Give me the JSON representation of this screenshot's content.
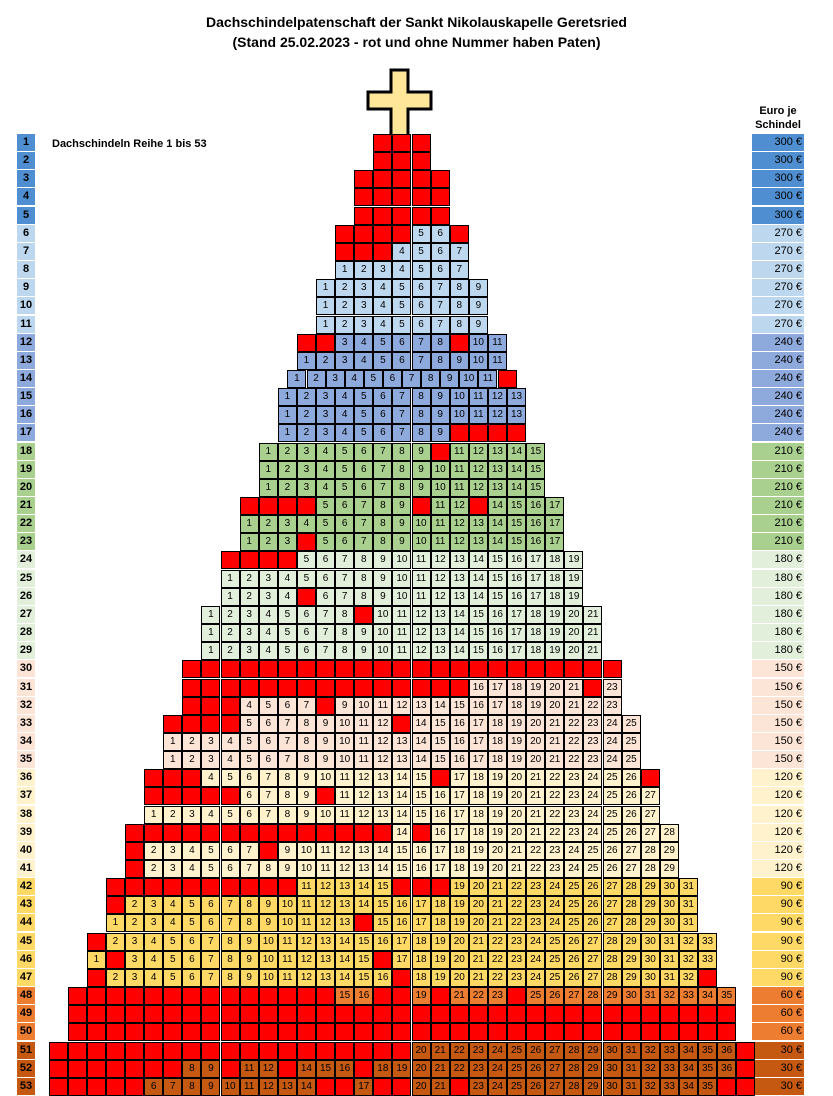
{
  "title1": "Dachschindelpatenschaft der Sankt Nikolauskapelle Geretsried",
  "title2": "(Stand 25.02.2023 - rot und ohne Nummer haben Paten)",
  "row_label": "Dachschindeln Reihe 1 bis 53",
  "price_header_1": "Euro je",
  "price_header_2": "Schindel",
  "rows": [
    {
      "n": "1",
      "price": "300 €",
      "color": "#4f8fd1",
      "cells": [
        "",
        "",
        ""
      ]
    },
    {
      "n": "2",
      "price": "300 €",
      "color": "#4f8fd1",
      "cells": [
        "",
        "",
        ""
      ]
    },
    {
      "n": "3",
      "price": "300 €",
      "color": "#4f8fd1",
      "cells": [
        "",
        "",
        "",
        "",
        ""
      ]
    },
    {
      "n": "4",
      "price": "300 €",
      "color": "#4f8fd1",
      "cells": [
        "",
        "",
        "",
        "",
        ""
      ]
    },
    {
      "n": "5",
      "price": "300 €",
      "color": "#4f8fd1",
      "cells": [
        "",
        "",
        "",
        "",
        ""
      ]
    },
    {
      "n": "6",
      "price": "270 €",
      "color": "#bdd7ee",
      "cells": [
        "",
        "",
        "",
        "",
        "5",
        "6",
        ""
      ]
    },
    {
      "n": "7",
      "price": "270 €",
      "color": "#bdd7ee",
      "cells": [
        "",
        "",
        "",
        "4",
        "5",
        "6",
        "7"
      ]
    },
    {
      "n": "8",
      "price": "270 €",
      "color": "#bdd7ee",
      "cells": [
        "1",
        "2",
        "3",
        "4",
        "5",
        "6",
        "7"
      ]
    },
    {
      "n": "9",
      "price": "270 €",
      "color": "#bdd7ee",
      "cells": [
        "1",
        "2",
        "3",
        "4",
        "5",
        "6",
        "7",
        "8",
        "9"
      ]
    },
    {
      "n": "10",
      "price": "270 €",
      "color": "#bdd7ee",
      "cells": [
        "1",
        "2",
        "3",
        "4",
        "5",
        "6",
        "7",
        "8",
        "9"
      ]
    },
    {
      "n": "11",
      "price": "270 €",
      "color": "#bdd7ee",
      "cells": [
        "1",
        "2",
        "3",
        "4",
        "5",
        "6",
        "7",
        "8",
        "9"
      ]
    },
    {
      "n": "12",
      "price": "240 €",
      "color": "#8ea9db",
      "cells": [
        "",
        "",
        "3",
        "4",
        "5",
        "6",
        "7",
        "8",
        "",
        "10",
        "11"
      ]
    },
    {
      "n": "13",
      "price": "240 €",
      "color": "#8ea9db",
      "cells": [
        "1",
        "2",
        "3",
        "4",
        "5",
        "6",
        "7",
        "8",
        "9",
        "10",
        "11"
      ]
    },
    {
      "n": "14",
      "price": "240 €",
      "color": "#8ea9db",
      "cells": [
        "1",
        "2",
        "3",
        "4",
        "5",
        "6",
        "7",
        "8",
        "9",
        "10",
        "11",
        ""
      ]
    },
    {
      "n": "15",
      "price": "240 €",
      "color": "#8ea9db",
      "cells": [
        "1",
        "2",
        "3",
        "4",
        "5",
        "6",
        "7",
        "8",
        "9",
        "10",
        "11",
        "12",
        "13"
      ]
    },
    {
      "n": "16",
      "price": "240 €",
      "color": "#8ea9db",
      "cells": [
        "1",
        "2",
        "3",
        "4",
        "5",
        "6",
        "7",
        "8",
        "9",
        "10",
        "11",
        "12",
        "13"
      ]
    },
    {
      "n": "17",
      "price": "240 €",
      "color": "#8ea9db",
      "cells": [
        "1",
        "2",
        "3",
        "4",
        "5",
        "6",
        "7",
        "8",
        "9",
        "",
        "",
        "",
        ""
      ]
    },
    {
      "n": "18",
      "price": "210 €",
      "color": "#a9d08e",
      "cells": [
        "1",
        "2",
        "3",
        "4",
        "5",
        "6",
        "7",
        "8",
        "9",
        "",
        "11",
        "12",
        "13",
        "14",
        "15"
      ]
    },
    {
      "n": "19",
      "price": "210 €",
      "color": "#a9d08e",
      "cells": [
        "1",
        "2",
        "3",
        "4",
        "5",
        "6",
        "7",
        "8",
        "9",
        "10",
        "11",
        "12",
        "13",
        "14",
        "15"
      ]
    },
    {
      "n": "20",
      "price": "210 €",
      "color": "#a9d08e",
      "cells": [
        "1",
        "2",
        "3",
        "4",
        "5",
        "6",
        "7",
        "8",
        "9",
        "10",
        "11",
        "12",
        "13",
        "14",
        "15"
      ]
    },
    {
      "n": "21",
      "price": "210 €",
      "color": "#a9d08e",
      "cells": [
        "",
        "",
        "",
        "",
        "5",
        "6",
        "7",
        "8",
        "9",
        "",
        "11",
        "12",
        "",
        "14",
        "15",
        "16",
        "17"
      ]
    },
    {
      "n": "22",
      "price": "210 €",
      "color": "#a9d08e",
      "cells": [
        "1",
        "2",
        "3",
        "4",
        "5",
        "6",
        "7",
        "8",
        "9",
        "10",
        "11",
        "12",
        "13",
        "14",
        "15",
        "16",
        "17"
      ]
    },
    {
      "n": "23",
      "price": "210 €",
      "color": "#a9d08e",
      "cells": [
        "1",
        "2",
        "3",
        "",
        "5",
        "6",
        "7",
        "8",
        "9",
        "10",
        "11",
        "12",
        "13",
        "14",
        "15",
        "16",
        "17"
      ]
    },
    {
      "n": "24",
      "price": "180 €",
      "color": "#e2efda",
      "cells": [
        "",
        "",
        "",
        "",
        "5",
        "6",
        "7",
        "8",
        "9",
        "10",
        "11",
        "12",
        "13",
        "14",
        "15",
        "16",
        "17",
        "18",
        "19"
      ]
    },
    {
      "n": "25",
      "price": "180 €",
      "color": "#e2efda",
      "cells": [
        "1",
        "2",
        "3",
        "4",
        "5",
        "6",
        "7",
        "8",
        "9",
        "10",
        "11",
        "12",
        "13",
        "14",
        "15",
        "16",
        "17",
        "18",
        "19"
      ]
    },
    {
      "n": "26",
      "price": "180 €",
      "color": "#e2efda",
      "cells": [
        "1",
        "2",
        "3",
        "4",
        "",
        "6",
        "7",
        "8",
        "9",
        "10",
        "11",
        "12",
        "13",
        "14",
        "15",
        "16",
        "17",
        "18",
        "19"
      ]
    },
    {
      "n": "27",
      "price": "180 €",
      "color": "#e2efda",
      "cells": [
        "1",
        "2",
        "3",
        "4",
        "5",
        "6",
        "7",
        "8",
        "",
        "10",
        "11",
        "12",
        "13",
        "14",
        "15",
        "16",
        "17",
        "18",
        "19",
        "20",
        "21"
      ]
    },
    {
      "n": "28",
      "price": "180 €",
      "color": "#e2efda",
      "cells": [
        "1",
        "2",
        "3",
        "4",
        "5",
        "6",
        "7",
        "8",
        "9",
        "10",
        "11",
        "12",
        "13",
        "14",
        "15",
        "16",
        "17",
        "18",
        "19",
        "20",
        "21"
      ]
    },
    {
      "n": "29",
      "price": "180 €",
      "color": "#e2efda",
      "cells": [
        "1",
        "2",
        "3",
        "4",
        "5",
        "6",
        "7",
        "8",
        "9",
        "10",
        "11",
        "12",
        "13",
        "14",
        "15",
        "16",
        "17",
        "18",
        "19",
        "20",
        "21"
      ]
    },
    {
      "n": "30",
      "price": "150 €",
      "color": "#fce4d6",
      "cells": [
        "",
        "",
        "",
        "",
        "",
        "",
        "",
        "",
        "",
        "",
        "",
        "",
        "",
        "",
        "",
        "",
        "",
        "",
        "",
        "",
        "",
        "",
        ""
      ]
    },
    {
      "n": "31",
      "price": "150 €",
      "color": "#fce4d6",
      "cells": [
        "",
        "",
        "",
        "",
        "",
        "",
        "",
        "",
        "",
        "",
        "",
        "",
        "",
        "",
        "",
        "16",
        "17",
        "18",
        "19",
        "20",
        "21",
        "",
        "23"
      ]
    },
    {
      "n": "32",
      "price": "150 €",
      "color": "#fce4d6",
      "cells": [
        "",
        "",
        "",
        "4",
        "5",
        "6",
        "7",
        "",
        "9",
        "10",
        "11",
        "12",
        "13",
        "14",
        "15",
        "16",
        "17",
        "18",
        "19",
        "20",
        "21",
        "22",
        "23"
      ]
    },
    {
      "n": "33",
      "price": "150 €",
      "color": "#fce4d6",
      "cells": [
        "",
        "",
        "",
        "",
        "5",
        "6",
        "7",
        "8",
        "9",
        "10",
        "11",
        "12",
        "",
        "14",
        "15",
        "16",
        "17",
        "18",
        "19",
        "20",
        "21",
        "22",
        "23",
        "24",
        "25"
      ]
    },
    {
      "n": "34",
      "price": "150 €",
      "color": "#fce4d6",
      "cells": [
        "1",
        "2",
        "3",
        "4",
        "5",
        "6",
        "7",
        "8",
        "9",
        "10",
        "11",
        "12",
        "13",
        "14",
        "15",
        "16",
        "17",
        "18",
        "19",
        "20",
        "21",
        "22",
        "23",
        "24",
        "25"
      ]
    },
    {
      "n": "35",
      "price": "150 €",
      "color": "#fce4d6",
      "cells": [
        "1",
        "2",
        "3",
        "4",
        "5",
        "6",
        "7",
        "8",
        "9",
        "10",
        "11",
        "12",
        "13",
        "14",
        "15",
        "16",
        "17",
        "18",
        "19",
        "20",
        "21",
        "22",
        "23",
        "24",
        "25"
      ]
    },
    {
      "n": "36",
      "price": "120 €",
      "color": "#fff2cc",
      "cells": [
        "",
        "",
        "",
        "4",
        "5",
        "6",
        "7",
        "8",
        "9",
        "10",
        "11",
        "12",
        "13",
        "14",
        "15",
        "",
        "17",
        "18",
        "19",
        "20",
        "21",
        "22",
        "23",
        "24",
        "25",
        "26",
        ""
      ]
    },
    {
      "n": "37",
      "price": "120 €",
      "color": "#fff2cc",
      "cells": [
        "",
        "",
        "",
        "",
        "",
        "6",
        "7",
        "8",
        "9",
        "",
        "11",
        "12",
        "13",
        "14",
        "15",
        "16",
        "17",
        "18",
        "19",
        "20",
        "21",
        "22",
        "23",
        "24",
        "25",
        "26",
        "27"
      ]
    },
    {
      "n": "38",
      "price": "120 €",
      "color": "#fff2cc",
      "cells": [
        "1",
        "2",
        "3",
        "4",
        "5",
        "6",
        "7",
        "8",
        "9",
        "10",
        "11",
        "12",
        "13",
        "14",
        "15",
        "16",
        "17",
        "18",
        "19",
        "20",
        "21",
        "22",
        "23",
        "24",
        "25",
        "26",
        "27"
      ]
    },
    {
      "n": "39",
      "price": "120 €",
      "color": "#fff2cc",
      "cells": [
        "",
        "",
        "",
        "",
        "",
        "",
        "",
        "",
        "",
        "",
        "",
        "",
        "",
        "",
        "14",
        "",
        "16",
        "17",
        "18",
        "19",
        "20",
        "21",
        "22",
        "23",
        "24",
        "25",
        "26",
        "27",
        "28"
      ]
    },
    {
      "n": "40",
      "price": "120 €",
      "color": "#fff2cc",
      "cells": [
        "",
        "2",
        "3",
        "4",
        "5",
        "6",
        "7",
        "",
        "9",
        "10",
        "11",
        "12",
        "13",
        "14",
        "15",
        "16",
        "17",
        "18",
        "19",
        "20",
        "21",
        "22",
        "23",
        "24",
        "25",
        "26",
        "27",
        "28",
        "29"
      ]
    },
    {
      "n": "41",
      "price": "120 €",
      "color": "#fff2cc",
      "cells": [
        "",
        "2",
        "3",
        "4",
        "5",
        "6",
        "7",
        "8",
        "9",
        "10",
        "11",
        "12",
        "13",
        "14",
        "15",
        "16",
        "17",
        "18",
        "19",
        "20",
        "21",
        "22",
        "23",
        "24",
        "25",
        "26",
        "27",
        "28",
        "29"
      ]
    },
    {
      "n": "42",
      "price": "90 €",
      "color": "#ffd966",
      "cells": [
        "",
        "",
        "",
        "",
        "",
        "",
        "",
        "",
        "",
        "",
        "11",
        "12",
        "13",
        "14",
        "15",
        "",
        "",
        "",
        "19",
        "20",
        "21",
        "22",
        "23",
        "24",
        "25",
        "26",
        "27",
        "28",
        "29",
        "30",
        "31"
      ]
    },
    {
      "n": "43",
      "price": "90 €",
      "color": "#ffd966",
      "cells": [
        "",
        "2",
        "3",
        "4",
        "5",
        "6",
        "7",
        "8",
        "9",
        "10",
        "11",
        "12",
        "13",
        "14",
        "15",
        "16",
        "17",
        "18",
        "19",
        "20",
        "21",
        "22",
        "23",
        "24",
        "25",
        "26",
        "27",
        "28",
        "29",
        "30",
        "31"
      ]
    },
    {
      "n": "44",
      "price": "90 €",
      "color": "#ffd966",
      "cells": [
        "1",
        "2",
        "3",
        "4",
        "5",
        "6",
        "7",
        "8",
        "9",
        "10",
        "11",
        "12",
        "13",
        "",
        "15",
        "16",
        "17",
        "18",
        "19",
        "20",
        "21",
        "22",
        "23",
        "24",
        "25",
        "26",
        "27",
        "28",
        "29",
        "30",
        "31"
      ]
    },
    {
      "n": "45",
      "price": "90 €",
      "color": "#ffd966",
      "cells": [
        "",
        "2",
        "3",
        "4",
        "5",
        "6",
        "7",
        "8",
        "9",
        "10",
        "11",
        "12",
        "13",
        "14",
        "15",
        "16",
        "17",
        "18",
        "19",
        "20",
        "21",
        "22",
        "23",
        "24",
        "25",
        "26",
        "27",
        "28",
        "29",
        "30",
        "31",
        "32",
        "33"
      ]
    },
    {
      "n": "46",
      "price": "90 €",
      "color": "#ffd966",
      "cells": [
        "1",
        "",
        "3",
        "4",
        "5",
        "6",
        "7",
        "8",
        "9",
        "10",
        "11",
        "12",
        "13",
        "14",
        "15",
        "",
        "17",
        "18",
        "19",
        "20",
        "21",
        "22",
        "23",
        "24",
        "25",
        "26",
        "27",
        "28",
        "29",
        "30",
        "31",
        "32",
        "33"
      ]
    },
    {
      "n": "47",
      "price": "90 €",
      "color": "#ffd966",
      "cells": [
        "",
        "2",
        "3",
        "4",
        "5",
        "6",
        "7",
        "8",
        "9",
        "10",
        "11",
        "12",
        "13",
        "14",
        "15",
        "16",
        "",
        "18",
        "19",
        "20",
        "21",
        "22",
        "23",
        "24",
        "25",
        "26",
        "27",
        "28",
        "29",
        "30",
        "31",
        "32",
        ""
      ]
    },
    {
      "n": "48",
      "price": "60 €",
      "color": "#ed7d31",
      "cells": [
        "",
        "",
        "",
        "",
        "",
        "",
        "",
        "",
        "",
        "",
        "",
        "",
        "",
        "",
        "15",
        "16",
        "",
        "",
        "19",
        "",
        "21",
        "22",
        "23",
        "",
        "25",
        "26",
        "27",
        "28",
        "29",
        "30",
        "31",
        "32",
        "33",
        "34",
        "35"
      ]
    },
    {
      "n": "49",
      "price": "60 €",
      "color": "#ed7d31",
      "cells": [
        "",
        "",
        "",
        "",
        "",
        "",
        "",
        "",
        "",
        "",
        "",
        "",
        "",
        "",
        "",
        "",
        "",
        "",
        "",
        "",
        "",
        "",
        "",
        "",
        "",
        "",
        "",
        "",
        "",
        "",
        "",
        "",
        "",
        "",
        ""
      ]
    },
    {
      "n": "50",
      "price": "60 €",
      "color": "#ed7d31",
      "cells": [
        "",
        "",
        "",
        "",
        "",
        "",
        "",
        "",
        "",
        "",
        "",
        "",
        "",
        "",
        "",
        "",
        "",
        "",
        "",
        "",
        "",
        "",
        "",
        "",
        "",
        "",
        "",
        "",
        "",
        "",
        "",
        "",
        "",
        "",
        ""
      ]
    },
    {
      "n": "51",
      "price": "30 €",
      "color": "#c65911",
      "cells": [
        "",
        "",
        "",
        "",
        "",
        "",
        "",
        "",
        "",
        "",
        "",
        "",
        "",
        "",
        "",
        "",
        "",
        "",
        "",
        "20",
        "21",
        "22",
        "23",
        "24",
        "25",
        "26",
        "27",
        "28",
        "29",
        "30",
        "31",
        "32",
        "33",
        "34",
        "35",
        "36",
        ""
      ]
    },
    {
      "n": "52",
      "price": "30 €",
      "color": "#c65911",
      "cells": [
        "",
        "",
        "",
        "",
        "",
        "",
        "",
        "8",
        "9",
        "",
        "11",
        "12",
        "",
        "14",
        "15",
        "16",
        "",
        "18",
        "19",
        "20",
        "21",
        "22",
        "23",
        "24",
        "25",
        "26",
        "27",
        "28",
        "29",
        "30",
        "31",
        "32",
        "33",
        "34",
        "35",
        "36",
        ""
      ]
    },
    {
      "n": "53",
      "price": "30 €",
      "color": "#c65911",
      "cells": [
        "",
        "",
        "",
        "",
        "",
        "6",
        "7",
        "8",
        "9",
        "10",
        "11",
        "12",
        "13",
        "14",
        "",
        "",
        "17",
        "",
        "",
        "20",
        "21",
        "",
        "23",
        "24",
        "25",
        "26",
        "27",
        "28",
        "29",
        "30",
        "31",
        "32",
        "33",
        "34",
        "35",
        "",
        ""
      ]
    }
  ]
}
